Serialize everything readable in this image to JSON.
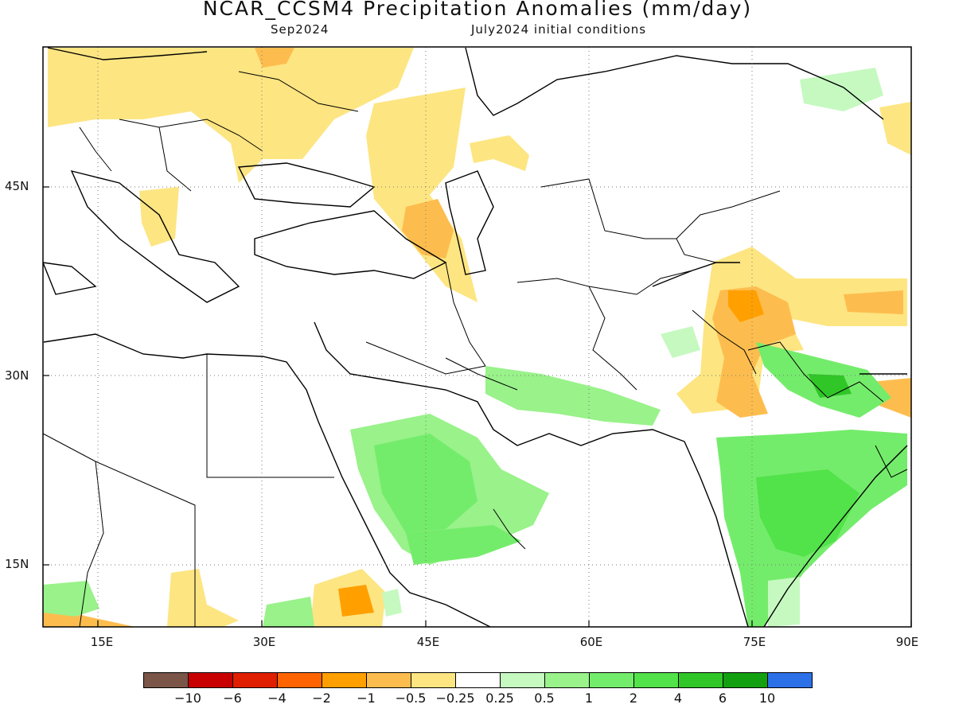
{
  "title": "NCAR_CCSM4 Precipitation Anomalies (mm/day)",
  "subtitle_left": "Sep2024",
  "subtitle_right": "July2024 initial conditions",
  "lat_labels": [
    "45N",
    "30N",
    "15N"
  ],
  "lon_labels": [
    "15E",
    "30E",
    "45E",
    "60E",
    "75E",
    "90E"
  ],
  "colorbar": {
    "colors": [
      "#7a5548",
      "#c80000",
      "#e01e00",
      "#ff6400",
      "#ffa000",
      "#fdbd4e",
      "#fde582",
      "#ffffff",
      "#c5f9c0",
      "#99f28a",
      "#74ec6b",
      "#52e24a",
      "#30c628",
      "#12a010",
      "#2c70e8"
    ],
    "labels": [
      "−10",
      "−6",
      "−4",
      "−2",
      "−1",
      "−0.5",
      "−0.25",
      "0.25",
      "0.5",
      "1",
      "2",
      "4",
      "6",
      "10"
    ]
  },
  "legend_colors": {
    "dry_light": "#fde582",
    "dry_mid": "#fdbd4e",
    "dry_strong": "#ffa000",
    "wet_light": "#c5f9c0",
    "wet_mid": "#99f28a",
    "wet_strong": "#74ec6b",
    "wet_stronger": "#52e24a",
    "wet_max": "#30c628"
  }
}
